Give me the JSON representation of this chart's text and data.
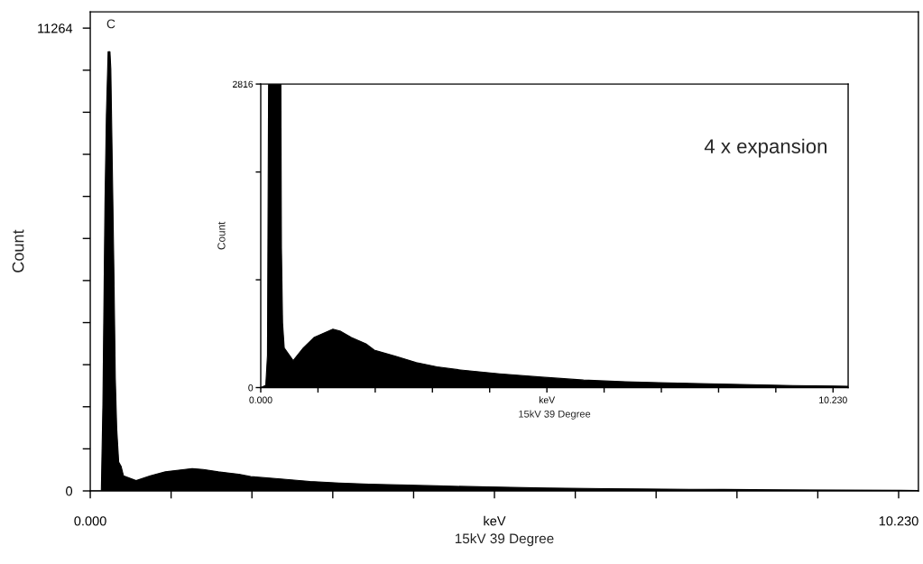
{
  "chart_data": [
    {
      "type": "area",
      "xlabel": "15kV 39 Degree",
      "ylabel": "Count",
      "x": [
        0.0,
        0.14,
        0.16,
        0.186,
        0.204,
        0.226,
        0.249,
        0.26,
        0.28,
        0.3,
        0.317,
        0.335,
        0.36,
        0.39,
        0.42,
        0.58,
        0.76,
        0.95,
        1.29,
        1.43,
        1.62,
        1.88,
        2.03,
        2.41,
        2.78,
        3.15,
        3.53,
        4.27,
        5.02,
        5.77,
        6.52,
        7.26,
        8.01,
        8.76,
        9.51,
        10.26,
        10.48
      ],
      "series": [
        {
          "color": "#000000",
          "values": [
            0,
            0,
            2122,
            6990,
            9138,
            10690,
            10690,
            10278,
            7779,
            5236,
            2736,
            1508,
            700,
            600,
            368,
            250,
            368,
            464,
            542,
            522,
            464,
            406,
            348,
            290,
            232,
            193,
            166,
            128,
            97,
            70,
            54,
            43,
            35,
            27,
            19,
            15,
            12
          ]
        }
      ],
      "annotations": [
        "C"
      ],
      "xlim": [
        0,
        10.48
      ],
      "ylim": [
        0,
        11660
      ],
      "xticks": [
        {
          "value": 0,
          "label": "0.000"
        },
        {
          "value": 1.023,
          "label": null
        },
        {
          "value": 2.046,
          "label": null
        },
        {
          "value": 3.069,
          "label": null
        },
        {
          "value": 4.092,
          "label": null
        },
        {
          "value": 5.115,
          "label": "keV"
        },
        {
          "value": 6.138,
          "label": null
        },
        {
          "value": 7.161,
          "label": null
        },
        {
          "value": 8.184,
          "label": null
        },
        {
          "value": 9.207,
          "label": null
        },
        {
          "value": 10.23,
          "label": "10.230"
        }
      ],
      "yticks": [
        0,
        {
          "value": 1024,
          "label": null
        },
        {
          "value": 2048,
          "label": null
        },
        {
          "value": 3072,
          "label": null
        },
        {
          "value": 4096,
          "label": null
        },
        {
          "value": 5120,
          "label": null
        },
        {
          "value": 6144,
          "label": null
        },
        {
          "value": 7168,
          "label": null
        },
        {
          "value": 8192,
          "label": null
        },
        {
          "value": 9216,
          "label": null
        },
        {
          "value": 10240,
          "label": null
        },
        11264
      ],
      "grid": false,
      "legend": false
    },
    {
      "type": "area",
      "xlabel": "15kV 39 Degree",
      "ylabel": "Count",
      "x": [
        0.0,
        0.09,
        0.12,
        0.14,
        0.36,
        0.37,
        0.39,
        0.42,
        0.58,
        0.76,
        0.95,
        1.29,
        1.43,
        1.62,
        1.88,
        2.03,
        2.41,
        2.78,
        3.15,
        3.53,
        4.27,
        5.02,
        5.77,
        6.52,
        7.26,
        8.01,
        8.76,
        9.51,
        10.26,
        10.5
      ],
      "series": [
        {
          "color": "#000000",
          "values": [
            0,
            20,
            300,
            2816,
            2816,
            1296,
            600,
            368,
            250,
            368,
            464,
            542,
            522,
            464,
            406,
            348,
            290,
            232,
            193,
            166,
            128,
            97,
            70,
            54,
            43,
            35,
            27,
            19,
            15,
            12
          ]
        }
      ],
      "annotations": [
        "4 x expansion"
      ],
      "xlim": [
        0,
        10.5
      ],
      "ylim": [
        0,
        2816
      ],
      "xticks": [
        {
          "value": 0,
          "label": "0.000"
        },
        {
          "value": 1.023,
          "label": null
        },
        {
          "value": 2.046,
          "label": null
        },
        {
          "value": 3.069,
          "label": null
        },
        {
          "value": 4.092,
          "label": null
        },
        {
          "value": 5.115,
          "label": "keV"
        },
        {
          "value": 6.138,
          "label": null
        },
        {
          "value": 7.161,
          "label": null
        },
        {
          "value": 8.184,
          "label": null
        },
        {
          "value": 9.207,
          "label": null
        },
        {
          "value": 10.23,
          "label": "10.230"
        }
      ],
      "yticks": [
        0,
        {
          "value": 1000,
          "label": null
        },
        {
          "value": 2000,
          "label": null
        },
        2816
      ],
      "grid": false,
      "legend": false
    }
  ]
}
